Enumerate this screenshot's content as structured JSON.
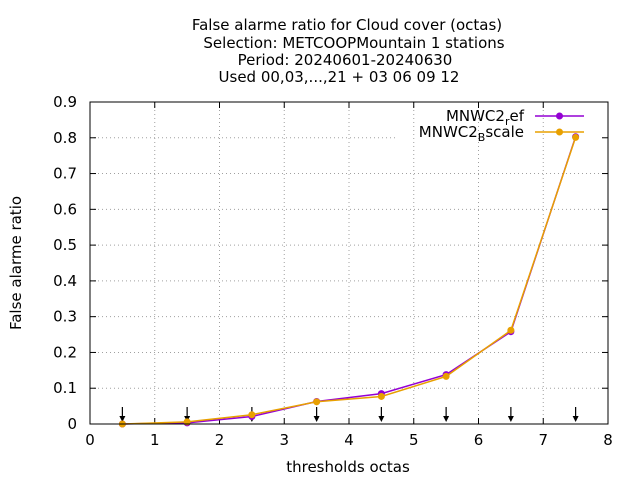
{
  "chart_data": {
    "type": "line",
    "title_lines": [
      "False alarme ratio  for Cloud cover (octas)",
      "Selection: METCOOPMountain      1 stations",
      "Period: 20240601-20240630",
      "Used 00,03,...,21 + 03 06 09 12"
    ],
    "xlabel": "thresholds octas",
    "ylabel": "False alarme ratio",
    "xlim": [
      0,
      8
    ],
    "ylim": [
      0,
      0.9
    ],
    "xticks": [
      "0",
      "1",
      "2",
      "3",
      "4",
      "5",
      "6",
      "7",
      "8"
    ],
    "yticks": [
      "0",
      "0.1",
      "0.2",
      "0.3",
      "0.4",
      "0.5",
      "0.6",
      "0.7",
      "0.8",
      "0.9"
    ],
    "grid": true,
    "legend_position": "top-right",
    "x": [
      0.5,
      1.5,
      2.5,
      3.5,
      4.5,
      5.5,
      6.5,
      7.5
    ],
    "series": [
      {
        "name": "MNWC2_ref",
        "legend_main": "MNWC2",
        "legend_sub": "r",
        "legend_rest": "ef",
        "color": "#9400d3",
        "values": [
          0.0,
          0.003,
          0.021,
          0.063,
          0.085,
          0.138,
          0.258,
          0.803
        ]
      },
      {
        "name": "MNWC2_Bscale",
        "legend_main": "MNWC2",
        "legend_sub": "B",
        "legend_rest": "scale",
        "color": "#e8a000",
        "values": [
          0.0,
          0.006,
          0.026,
          0.062,
          0.077,
          0.133,
          0.262,
          0.801
        ]
      }
    ],
    "arrow_markers_x": [
      0.5,
      1.5,
      2.5,
      3.5,
      4.5,
      5.5,
      6.5,
      7.5
    ]
  }
}
